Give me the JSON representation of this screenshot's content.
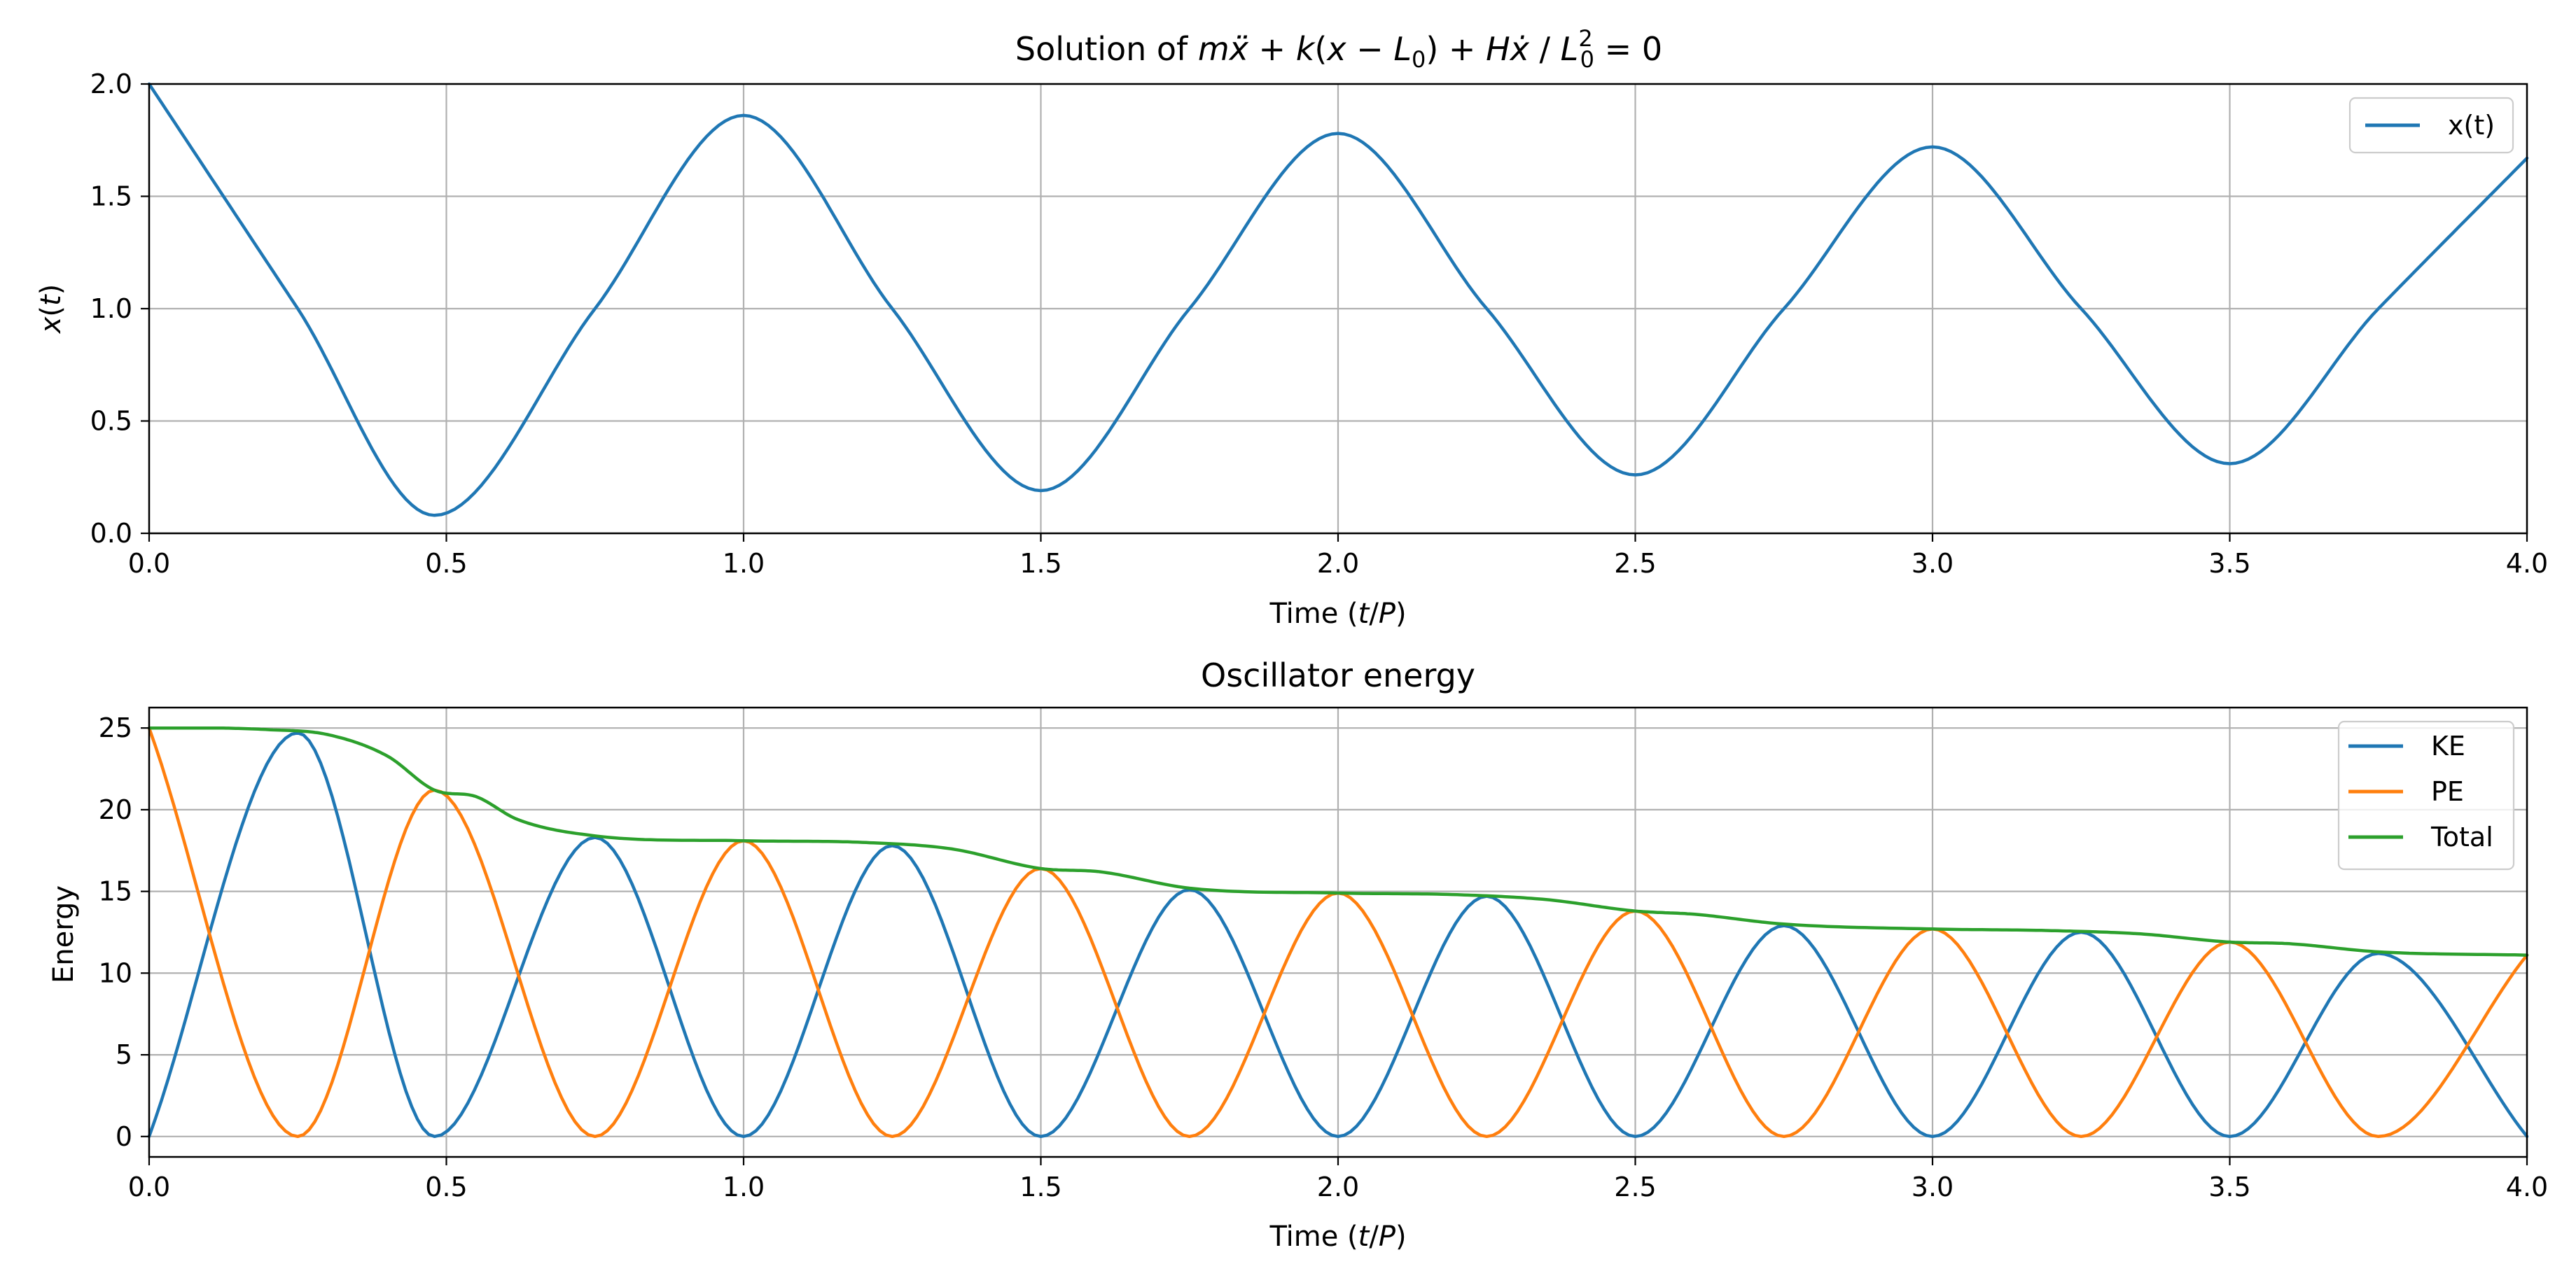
{
  "chart_data": [
    {
      "type": "line",
      "title": "Solution of mẍ + k(x − L₀) + Hẋ / L₀² = 0",
      "title_parts": {
        "prefix": "Solution of ",
        "m": "m",
        "xddot": "ẍ",
        "plus1": " + ",
        "k": "k",
        "paren_open": "(",
        "x": "x",
        "minus": " − ",
        "L": "L",
        "sub0": "0",
        "paren_close": ")",
        "plus2": " + ",
        "H": "H",
        "xdot": "ẋ",
        "slash": " / ",
        "L2": "L",
        "sup2": "2",
        "sub02": "0",
        "equals": " = 0"
      },
      "xlabel": "Time (t/P)",
      "xlabel_parts": {
        "pre": "Time (",
        "t": "t",
        "slash": "/",
        "P": "P",
        "post": ")"
      },
      "ylabel": "x(t)",
      "ylabel_parts": {
        "x": "x",
        "open": "(",
        "t": "t",
        "close": ")"
      },
      "xlim": [
        0,
        4
      ],
      "ylim": [
        0,
        2
      ],
      "xticks": [
        0,
        0.5,
        1,
        1.5,
        2,
        2.5,
        3,
        3.5,
        4
      ],
      "xtick_labels": [
        "0.0",
        "0.5",
        "1.0",
        "1.5",
        "2.0",
        "2.5",
        "3.0",
        "3.5",
        "4.0"
      ],
      "yticks": [
        0,
        0.5,
        1,
        1.5,
        2
      ],
      "ytick_labels": [
        "0.0",
        "0.5",
        "1.0",
        "1.5",
        "2.0"
      ],
      "grid": true,
      "legend_position": "top-right",
      "series": [
        {
          "name": "x(t)",
          "color": "#1f77b4",
          "x": [
            0,
            0.25,
            0.48,
            0.75,
            1.0,
            1.25,
            1.5,
            1.75,
            2.0,
            2.25,
            2.5,
            2.75,
            3.0,
            3.25,
            3.5,
            3.75,
            4.0
          ],
          "y": [
            2.0,
            1.0,
            0.08,
            1.0,
            1.86,
            1.0,
            0.19,
            1.0,
            1.78,
            1.0,
            0.26,
            1.0,
            1.72,
            1.0,
            0.31,
            1.0,
            1.67
          ]
        }
      ]
    },
    {
      "type": "line",
      "title": "Oscillator energy",
      "xlabel": "Time (t/P)",
      "xlabel_parts": {
        "pre": "Time (",
        "t": "t",
        "slash": "/",
        "P": "P",
        "post": ")"
      },
      "ylabel": "Energy",
      "xlim": [
        0,
        4
      ],
      "ylim": [
        -1.25,
        26.25
      ],
      "xticks": [
        0,
        0.5,
        1,
        1.5,
        2,
        2.5,
        3,
        3.5,
        4
      ],
      "xtick_labels": [
        "0.0",
        "0.5",
        "1.0",
        "1.5",
        "2.0",
        "2.5",
        "3.0",
        "3.5",
        "4.0"
      ],
      "yticks": [
        0,
        5,
        10,
        15,
        20,
        25
      ],
      "ytick_labels": [
        "0",
        "5",
        "10",
        "15",
        "20",
        "25"
      ],
      "grid": true,
      "legend_position": "top-right",
      "series": [
        {
          "name": "KE",
          "color": "#1f77b4",
          "x": [
            0,
            0.25,
            0.48,
            0.75,
            1.0,
            1.25,
            1.5,
            1.75,
            2.0,
            2.25,
            2.5,
            2.75,
            3.0,
            3.25,
            3.5,
            3.75,
            4.0
          ],
          "y": [
            0,
            24.7,
            0,
            18.3,
            0,
            17.8,
            0,
            15.1,
            0,
            14.7,
            0,
            12.9,
            0,
            12.5,
            0,
            11.2,
            0
          ]
        },
        {
          "name": "PE",
          "color": "#ff7f0e",
          "x": [
            0,
            0.25,
            0.48,
            0.75,
            1.0,
            1.25,
            1.5,
            1.75,
            2.0,
            2.25,
            2.5,
            2.75,
            3.0,
            3.25,
            3.5,
            3.75,
            4.0
          ],
          "y": [
            25.0,
            0,
            21.2,
            0,
            18.1,
            0,
            16.4,
            0,
            14.9,
            0,
            13.8,
            0,
            12.7,
            0,
            11.9,
            0,
            11.1
          ]
        },
        {
          "name": "Total",
          "color": "#2ca02c",
          "x": [
            0,
            0.1,
            0.2,
            0.3,
            0.4,
            0.48,
            0.55,
            0.62,
            0.75,
            1.0,
            1.2,
            1.35,
            1.5,
            1.6,
            1.75,
            2.0,
            2.2,
            2.35,
            2.5,
            2.6,
            2.75,
            3.0,
            3.2,
            3.35,
            3.5,
            3.6,
            3.75,
            4.0
          ],
          "y": [
            25.0,
            25.0,
            24.9,
            24.6,
            23.3,
            21.2,
            20.8,
            19.4,
            18.4,
            18.1,
            18.0,
            17.6,
            16.4,
            16.2,
            15.2,
            14.9,
            14.8,
            14.5,
            13.8,
            13.6,
            13.0,
            12.7,
            12.6,
            12.4,
            11.9,
            11.8,
            11.3,
            11.1
          ]
        }
      ]
    }
  ]
}
